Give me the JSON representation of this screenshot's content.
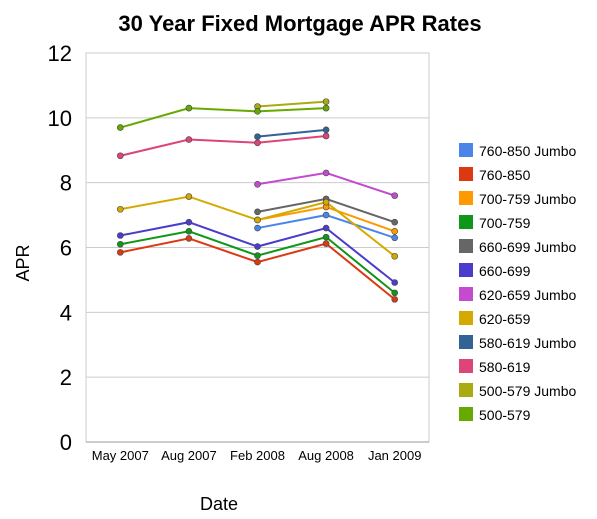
{
  "chart_data": {
    "type": "line",
    "title": "30 Year Fixed Mortgage APR Rates",
    "xlabel": "Date",
    "ylabel": "APR",
    "categories": [
      "May 2007",
      "Aug 2007",
      "Feb 2008",
      "Aug 2008",
      "Jan 2009"
    ],
    "ylim": [
      0,
      12
    ],
    "yticks": [
      0,
      2,
      4,
      6,
      8,
      10,
      12
    ],
    "grid": true,
    "legend_position": "right",
    "series": [
      {
        "name": "760-850 Jumbo",
        "color": "#4a86e8",
        "values": [
          null,
          null,
          6.6,
          7.0,
          6.3
        ]
      },
      {
        "name": "760-850",
        "color": "#dc3912",
        "values": [
          5.85,
          6.28,
          5.55,
          6.12,
          4.4
        ]
      },
      {
        "name": "700-759 Jumbo",
        "color": "#ff9900",
        "values": [
          null,
          null,
          6.85,
          7.25,
          6.5
        ]
      },
      {
        "name": "700-759",
        "color": "#109618",
        "values": [
          6.1,
          6.5,
          5.75,
          6.32,
          4.6
        ]
      },
      {
        "name": "660-699 Jumbo",
        "color": "#666666",
        "values": [
          null,
          null,
          7.1,
          7.5,
          6.78
        ]
      },
      {
        "name": "660-699",
        "color": "#4b3ccc",
        "values": [
          6.37,
          6.78,
          6.03,
          6.6,
          4.92
        ]
      },
      {
        "name": "620-659 Jumbo",
        "color": "#c44ad0",
        "values": [
          null,
          null,
          7.95,
          8.3,
          7.6
        ]
      },
      {
        "name": "620-659",
        "color": "#d4aa00",
        "values": [
          7.18,
          7.57,
          6.85,
          7.4,
          5.73
        ]
      },
      {
        "name": "580-619 Jumbo",
        "color": "#316395",
        "values": [
          null,
          null,
          9.42,
          9.63,
          null
        ]
      },
      {
        "name": "580-619",
        "color": "#dd4477",
        "values": [
          8.83,
          9.33,
          9.23,
          9.44,
          null
        ]
      },
      {
        "name": "500-579 Jumbo",
        "color": "#aaaa11",
        "values": [
          null,
          null,
          10.35,
          10.5,
          null
        ]
      },
      {
        "name": "500-579",
        "color": "#66aa00",
        "values": [
          9.7,
          10.3,
          10.2,
          10.3,
          null
        ]
      }
    ]
  }
}
